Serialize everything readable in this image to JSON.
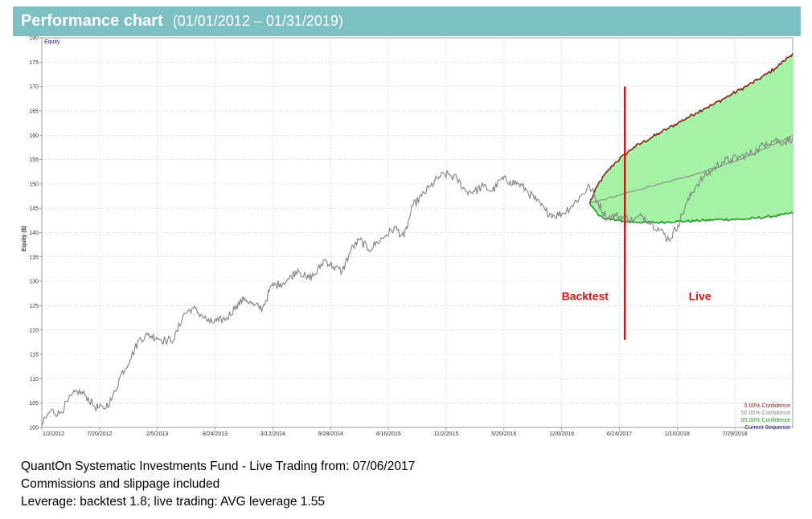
{
  "header": {
    "title": "Performance chart",
    "date_range": "(01/01/2012 – 01/31/2019)"
  },
  "footer": {
    "line1": "QuantOn Systematic Investments Fund - Live Trading from: 07/06/2017",
    "line2": "Commissions and slippage included",
    "line3": "Leverage: backtest 1.8;  live trading: AVG leverage 1.55"
  },
  "colors": {
    "header_bg": "#7dc0c3",
    "equity_line": "#808080",
    "confidence_5": "#8b1a1a",
    "confidence_50": "#888888",
    "confidence_95": "#1e9a1e",
    "confidence_fill": "#a4f2a4",
    "current_sequence": "#1c1c8c",
    "divider": "#e01010",
    "annotation": "#e01010"
  },
  "chart_data": {
    "type": "line",
    "title": "",
    "xlabel": "",
    "ylabel": "Equity ($)",
    "corner_label": "Equity",
    "ylim": [
      100,
      180
    ],
    "yticks": [
      100,
      105,
      110,
      115,
      120,
      125,
      130,
      135,
      140,
      145,
      150,
      155,
      160,
      165,
      170,
      175,
      180
    ],
    "x_tick_labels": [
      "1/2/2012",
      "7/20/2012",
      "2/5/2013",
      "8/24/2013",
      "3/12/2014",
      "9/28/2014",
      "4/16/2015",
      "11/2/2015",
      "5/20/2016",
      "12/6/2016",
      "6/24/2017",
      "1/10/2018",
      "7/29/2018"
    ],
    "x_range_months": [
      0,
      85
    ],
    "grid": true,
    "legend_position": "bottom-right",
    "legend": [
      {
        "label": "5.00% Confidence",
        "color": "#8b1a1a"
      },
      {
        "label": "50.00% Confidence",
        "color": "#888888"
      },
      {
        "label": "95.00% Confidence",
        "color": "#1e9a1e"
      },
      {
        "label": "Current Sequence",
        "color": "#1c1c8c"
      }
    ],
    "annotations": [
      {
        "text": "Backtest",
        "x": 61.5,
        "y": 127
      },
      {
        "text": "Live",
        "x": 74.5,
        "y": 127
      }
    ],
    "divider": {
      "x": 66,
      "y_from": 118,
      "y_to": 170
    },
    "series": [
      {
        "name": "Current Sequence",
        "x": [
          0,
          1,
          2,
          3,
          4,
          5,
          6,
          7,
          8,
          9,
          10,
          11,
          12,
          13,
          14,
          15,
          16,
          17,
          18,
          19,
          20,
          21,
          22,
          23,
          24,
          25,
          26,
          27,
          28,
          29,
          30,
          31,
          32,
          33,
          34,
          35,
          36,
          37,
          38,
          39,
          40,
          41,
          42,
          43,
          44,
          45,
          46,
          47,
          48,
          49,
          50,
          51,
          52,
          53,
          54,
          55,
          56,
          57,
          58,
          59,
          60,
          61,
          62,
          63,
          64,
          65,
          66,
          67,
          68,
          69,
          70,
          71,
          72,
          73,
          74,
          75,
          76,
          77,
          78,
          79,
          80,
          81,
          82,
          83,
          84,
          85
        ],
        "values": [
          100.5,
          103.5,
          102.8,
          105.5,
          107.5,
          106.5,
          104.2,
          103.8,
          106,
          111,
          114,
          118,
          119,
          118.5,
          117.8,
          118.2,
          123,
          124.5,
          123.2,
          121.5,
          121.8,
          122.5,
          125,
          126.5,
          125,
          124.5,
          129,
          129.5,
          130.5,
          132.5,
          130.5,
          131.5,
          134.5,
          133,
          132,
          136.5,
          138.5,
          136.5,
          138,
          139.5,
          141,
          139,
          145.5,
          147.5,
          149.5,
          151.5,
          152,
          151,
          148.5,
          148.5,
          149.5,
          148.5,
          151,
          150.5,
          150,
          148.5,
          146.5,
          144.5,
          143.5,
          144,
          145.5,
          147.5,
          149.5,
          146,
          143,
          143.5,
          143,
          142.5,
          143.5,
          142,
          140.5,
          138.5,
          141.5,
          146,
          149.5,
          151.5,
          153,
          154.5,
          155,
          155.5,
          156,
          157,
          158.5,
          159,
          158.5,
          159.5
        ]
      },
      {
        "name": "5.00% Confidence",
        "x": [
          62,
          63,
          64,
          65,
          66,
          67,
          68,
          69,
          70,
          71,
          72,
          73,
          74,
          75,
          76,
          77,
          78,
          79,
          80,
          81,
          82,
          83,
          84,
          85
        ],
        "values": [
          146,
          150,
          152.5,
          154.5,
          156,
          157.5,
          158.5,
          159.5,
          160.5,
          161.5,
          162.5,
          163.5,
          164.5,
          165.5,
          166.3,
          167.3,
          168.3,
          169.3,
          170.3,
          171.3,
          172.5,
          173.7,
          175.2,
          176.8
        ]
      },
      {
        "name": "50.00% Confidence",
        "x": [
          62,
          63,
          64,
          65,
          66,
          67,
          68,
          69,
          70,
          71,
          72,
          73,
          74,
          75,
          76,
          77,
          78,
          79,
          80,
          81,
          82,
          83,
          84,
          85
        ],
        "values": [
          146,
          146.5,
          147,
          147.5,
          148,
          148.5,
          149,
          149.5,
          150,
          150.5,
          151,
          151.5,
          152,
          152.6,
          153.2,
          153.8,
          154.4,
          155,
          155.8,
          156.6,
          157.4,
          158.2,
          159,
          160
        ]
      },
      {
        "name": "95.00% Confidence",
        "x": [
          62,
          63,
          64,
          65,
          66,
          67,
          68,
          69,
          70,
          71,
          72,
          73,
          74,
          75,
          76,
          77,
          78,
          79,
          80,
          81,
          82,
          83,
          84,
          85
        ],
        "values": [
          146,
          143.5,
          142.8,
          142.5,
          142.3,
          142.2,
          142.1,
          142.1,
          142.1,
          142.2,
          142.3,
          142.3,
          142.4,
          142.5,
          142.6,
          142.7,
          142.7,
          142.7,
          142.8,
          143,
          143.2,
          143.4,
          143.7,
          144
        ]
      }
    ]
  }
}
